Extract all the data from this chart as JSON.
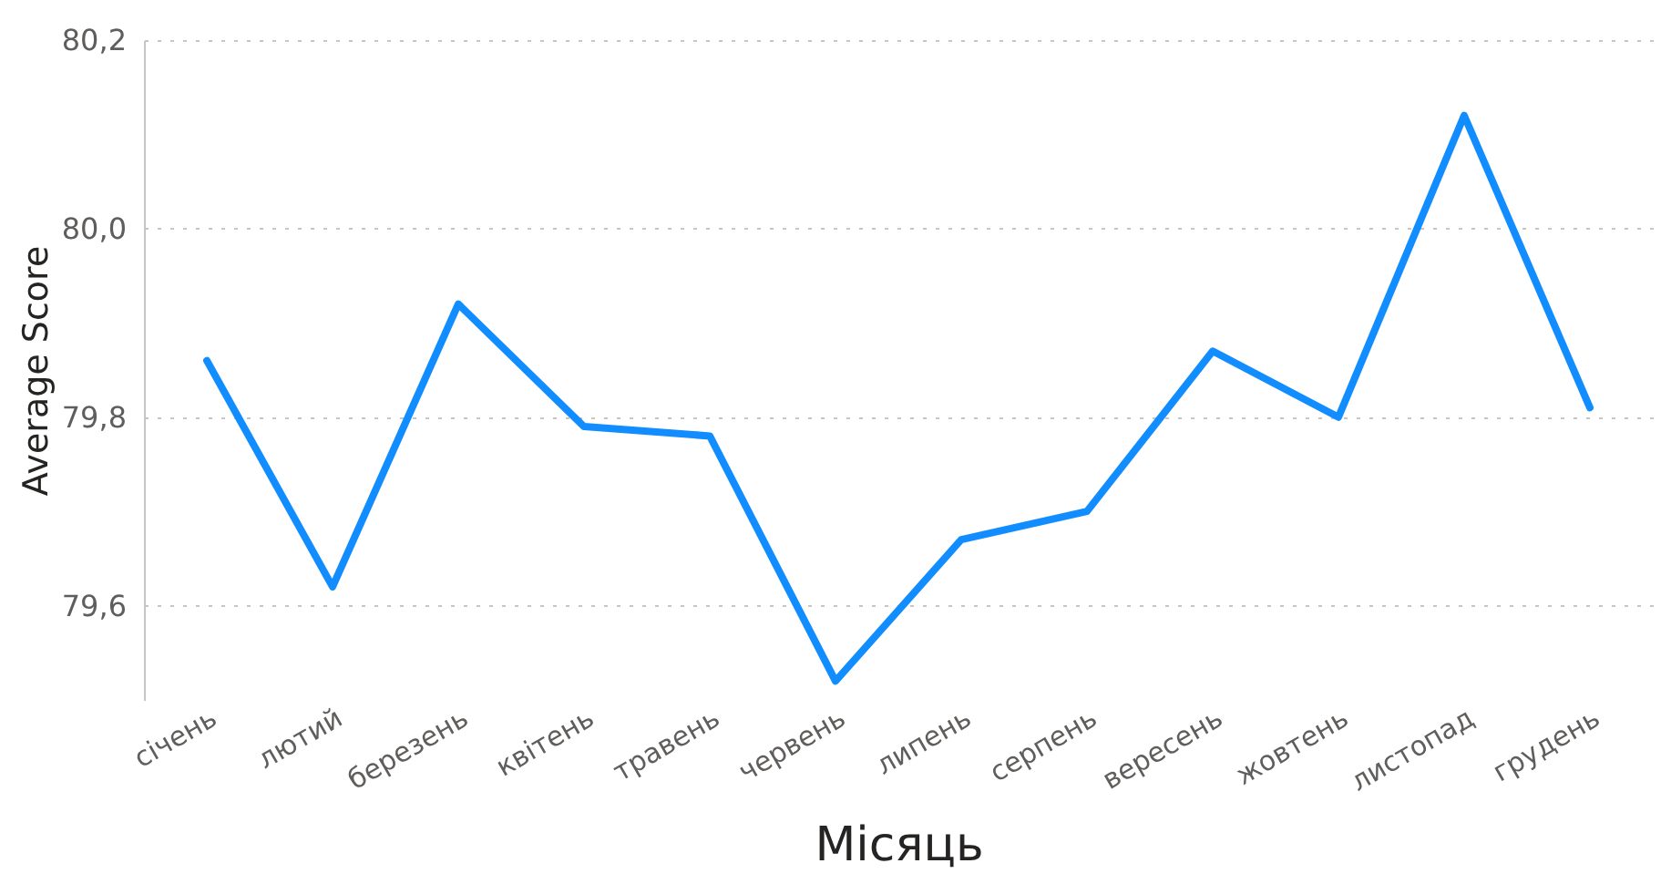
{
  "chart_data": {
    "type": "line",
    "xlabel": "Місяць",
    "ylabel": "Average Score",
    "categories": [
      "січень",
      "лютий",
      "березень",
      "квітень",
      "травень",
      "червень",
      "липень",
      "серпень",
      "вересень",
      "жовтень",
      "листопад",
      "грудень"
    ],
    "series": [
      {
        "color": "#118dff",
        "values": [
          79.86,
          79.62,
          79.92,
          79.79,
          79.78,
          79.52,
          79.67,
          79.7,
          79.87,
          79.8,
          80.12,
          79.81
        ]
      }
    ],
    "ylim": [
      79.5,
      80.2
    ],
    "yticks": [
      {
        "value": 79.6,
        "label": "79,6"
      },
      {
        "value": 79.8,
        "label": "79,8"
      },
      {
        "value": 80.0,
        "label": "80,0"
      },
      {
        "value": 80.2,
        "label": "80,2"
      }
    ],
    "grid": "y",
    "marker": "none",
    "line_style": "solid"
  }
}
